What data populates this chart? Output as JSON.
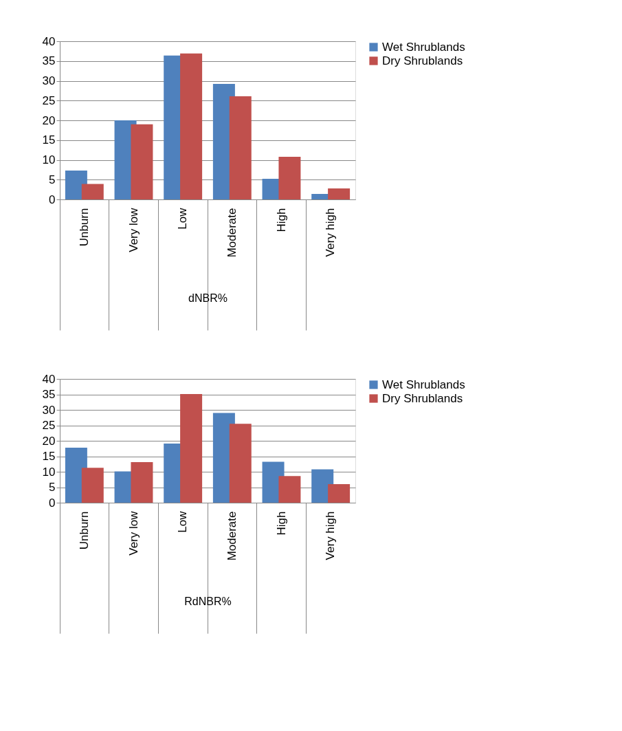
{
  "chart_data": [
    {
      "type": "bar",
      "xlabel": "dNBR%",
      "categories": [
        "Unburn",
        "Very low",
        "Low",
        "Moderate",
        "High",
        "Very high"
      ],
      "series": [
        {
          "name": "Wet Shrublands",
          "color": "#4f81bd",
          "values": [
            7.3,
            20.0,
            36.4,
            29.2,
            5.2,
            1.4
          ]
        },
        {
          "name": "Dry Shrublands",
          "color": "#c0504d",
          "values": [
            3.9,
            19.0,
            36.9,
            26.1,
            10.8,
            2.8
          ]
        }
      ],
      "ylim": [
        0,
        40
      ],
      "yticks": [
        0,
        5,
        10,
        15,
        20,
        25,
        30,
        35,
        40
      ],
      "grid": "y",
      "legend": "right"
    },
    {
      "type": "bar",
      "xlabel": "RdNBR%",
      "categories": [
        "Unburn",
        "Very low",
        "Low",
        "Moderate",
        "High",
        "Very high"
      ],
      "series": [
        {
          "name": "Wet Shrublands",
          "color": "#4f81bd",
          "values": [
            17.8,
            10.1,
            19.1,
            29.0,
            13.2,
            10.8
          ]
        },
        {
          "name": "Dry Shrublands",
          "color": "#c0504d",
          "values": [
            11.3,
            13.1,
            35.1,
            25.5,
            8.6,
            6.0
          ]
        }
      ],
      "ylim": [
        0,
        40
      ],
      "yticks": [
        0,
        5,
        10,
        15,
        20,
        25,
        30,
        35,
        40
      ],
      "grid": "y",
      "legend": "right"
    }
  ]
}
